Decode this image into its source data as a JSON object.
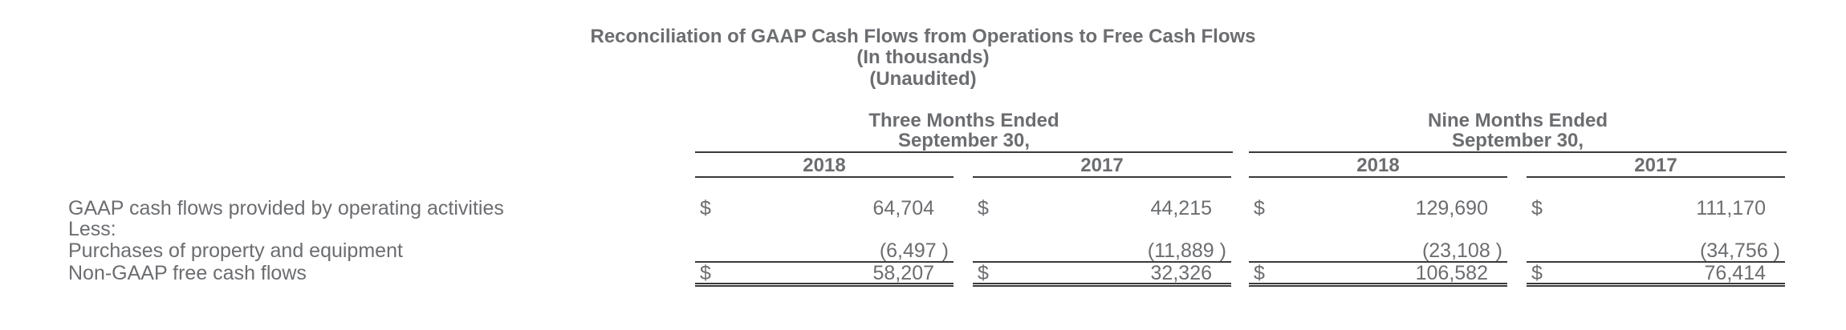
{
  "title": {
    "line1": "Reconciliation of GAAP Cash Flows from Operations to Free Cash Flows",
    "line2": "(In thousands)",
    "line3": "(Unaudited)"
  },
  "periods": [
    {
      "line1": "Three Months Ended",
      "line2": "September 30,",
      "years": [
        "2018",
        "2017"
      ]
    },
    {
      "line1": "Nine Months Ended",
      "line2": "September 30,",
      "years": [
        "2018",
        "2017"
      ]
    }
  ],
  "rows": {
    "operating": {
      "label": "GAAP cash flows provided by operating activities",
      "currency": "$",
      "values": [
        "64,704",
        "44,215",
        "129,690",
        "111,170"
      ]
    },
    "less": {
      "label": "Less:"
    },
    "purchases": {
      "label": "Purchases of property and equipment",
      "values": [
        "(6,497 )",
        "(11,889 )",
        "(23,108 )",
        "(34,756 )"
      ]
    },
    "free_cash": {
      "label": "Non-GAAP free cash flows",
      "currency": "$",
      "values": [
        "58,207",
        "32,326",
        "106,582",
        "76,414"
      ]
    }
  }
}
